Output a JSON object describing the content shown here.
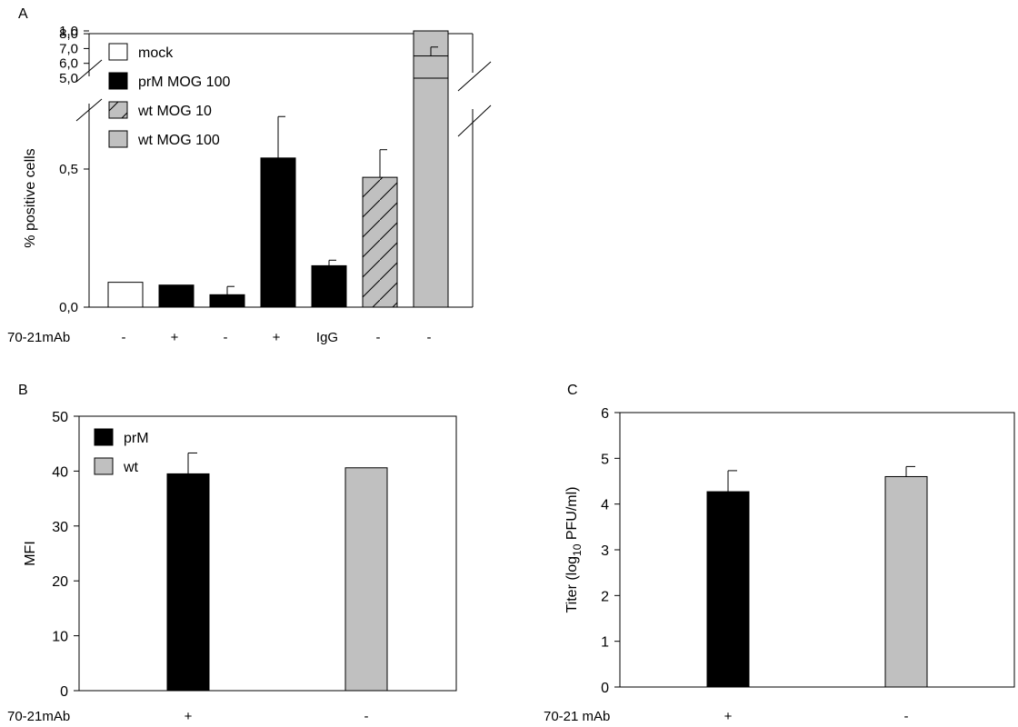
{
  "chart_data": [
    {
      "panel": "A",
      "type": "bar",
      "ylabel": "% positive cells",
      "xlabel": "70-21mAb",
      "categories": [
        "-",
        "+",
        "-",
        "+",
        "IgG",
        "-",
        "-"
      ],
      "ylim_lower": [
        0,
        1.0
      ],
      "ylim_upper": [
        5.0,
        8.0
      ],
      "axis_break": true,
      "lower_yticks": [
        "0,0",
        "0,5",
        "1,0"
      ],
      "upper_yticks": [
        "5,0",
        "6,0",
        "7,0",
        "8,0"
      ],
      "values": [
        0.09,
        0.08,
        0.045,
        0.54,
        0.15,
        0.47,
        6.5
      ],
      "errors": [
        0,
        0,
        0.03,
        0.15,
        0.02,
        0.1,
        0.6
      ],
      "bar_series": [
        "mock",
        "prM MOG 100",
        "prM MOG 100",
        "prM MOG 100",
        "prM MOG 100",
        "wt MOG 10",
        "wt MOG 100"
      ],
      "legend": [
        {
          "name": "mock",
          "fill": "#ffffff",
          "pattern": "none"
        },
        {
          "name": "prM MOG 100",
          "fill": "#000000",
          "pattern": "none"
        },
        {
          "name": "wt MOG 10",
          "fill": "#c0c0c0",
          "pattern": "hatch"
        },
        {
          "name": "wt MOG 100",
          "fill": "#c0c0c0",
          "pattern": "none"
        }
      ],
      "legend_position": "top-left",
      "grid": false
    },
    {
      "panel": "B",
      "type": "bar",
      "ylabel": "MFI",
      "xlabel": "70-21mAb",
      "categories": [
        "+",
        "-"
      ],
      "values": [
        39.5,
        40.6
      ],
      "errors": [
        3.8,
        0
      ],
      "bar_series": [
        "prM",
        "wt"
      ],
      "ylim": [
        0,
        50
      ],
      "yticks": [
        0,
        10,
        20,
        30,
        40,
        50
      ],
      "legend": [
        {
          "name": "prM",
          "fill": "#000000"
        },
        {
          "name": "wt",
          "fill": "#c0c0c0"
        }
      ],
      "legend_position": "top-left",
      "grid": false
    },
    {
      "panel": "C",
      "type": "bar",
      "ylabel_prefix": "Titer (log",
      "ylabel_sub": "10",
      "ylabel_suffix": " PFU/ml)",
      "xlabel": "70-21 mAb",
      "categories": [
        "+",
        "-"
      ],
      "values": [
        4.27,
        4.6
      ],
      "errors": [
        0.46,
        0.22
      ],
      "bar_fills": [
        "#000000",
        "#c0c0c0"
      ],
      "ylim": [
        0,
        6
      ],
      "yticks": [
        0,
        1,
        2,
        3,
        4,
        5,
        6
      ],
      "grid": false
    }
  ]
}
